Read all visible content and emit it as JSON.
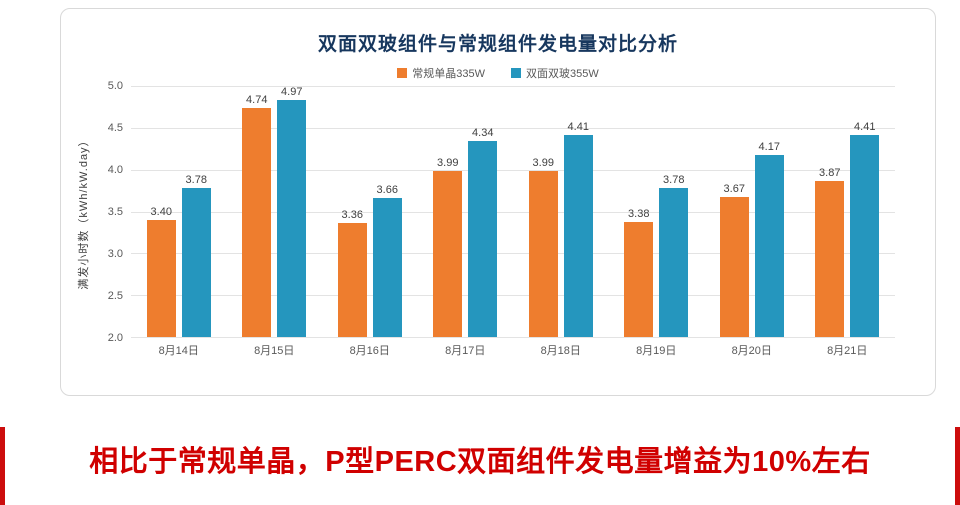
{
  "chart_data": {
    "type": "bar",
    "title": "双面双玻组件与常规组件发电量对比分析",
    "ylabel": "满发小时数（kWh/kW.day）",
    "xlabel": "",
    "ylim": [
      2.0,
      5.0
    ],
    "yticks": [
      "5.0",
      "4.5",
      "4.0",
      "3.5",
      "3.0",
      "2.5",
      "2.0"
    ],
    "grid": true,
    "legend_position": "top",
    "categories": [
      "8月14日",
      "8月15日",
      "8月16日",
      "8月17日",
      "8月18日",
      "8月19日",
      "8月20日",
      "8月21日"
    ],
    "series": [
      {
        "name": "常规单晶335W",
        "color": "#ee7d2e",
        "values": [
          3.4,
          4.74,
          3.36,
          3.99,
          3.99,
          3.38,
          3.67,
          3.87
        ],
        "value_labels": [
          "3.40",
          "4.74",
          "3.36",
          "3.99",
          "3.99",
          "3.38",
          "3.67",
          "3.87"
        ]
      },
      {
        "name": "双面双玻355W",
        "color": "#2596be",
        "values": [
          3.78,
          4.97,
          3.66,
          4.34,
          4.41,
          3.78,
          4.17,
          4.41
        ],
        "value_labels": [
          "3.78",
          "4.97",
          "3.66",
          "4.34",
          "4.41",
          "3.78",
          "4.17",
          "4.41"
        ]
      }
    ]
  },
  "caption": {
    "text": "相比于常规单晶，P型PERC双面组件发电量增益为10%左右",
    "color": "#d00000"
  }
}
